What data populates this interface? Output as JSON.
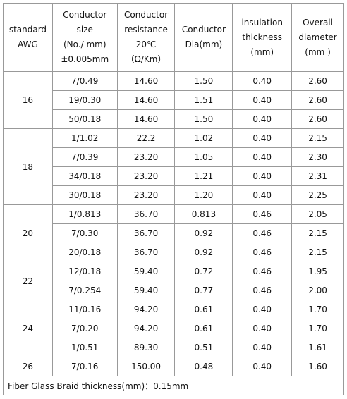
{
  "table": {
    "header": [
      [
        "standard",
        "AWG"
      ],
      [
        "Conductor",
        "size",
        "(No./ mm)",
        "±0.005mm"
      ],
      [
        "Conductor",
        "resistance",
        "20℃",
        "（Ω/Km）"
      ],
      [
        "Conductor",
        "Dia(mm)"
      ],
      [
        "insulation",
        "thickness",
        "(mm)"
      ],
      [
        "Overall",
        "diameter",
        "(mm )"
      ]
    ],
    "groups": [
      {
        "awg": "16",
        "rows": [
          [
            "7/0.49",
            "14.60",
            "1.50",
            "0.40",
            "2.60"
          ],
          [
            "19/0.30",
            "14.60",
            "1.51",
            "0.40",
            "2.60"
          ],
          [
            "50/0.18",
            "14.60",
            "1.50",
            "0.40",
            "2.60"
          ]
        ]
      },
      {
        "awg": "18",
        "rows": [
          [
            "1/1.02",
            "22.2",
            "1.02",
            "0.40",
            "2.15"
          ],
          [
            "7/0.39",
            "23.20",
            "1.05",
            "0.40",
            "2.30"
          ],
          [
            "34/0.18",
            "23.20",
            "1.21",
            "0.40",
            "2.31"
          ],
          [
            "30/0.18",
            "23.20",
            "1.20",
            "0.40",
            "2.25"
          ]
        ]
      },
      {
        "awg": "20",
        "rows": [
          [
            "1/0.813",
            "36.70",
            "0.813",
            "0.46",
            "2.05"
          ],
          [
            "7/0.30",
            "36.70",
            "0.92",
            "0.46",
            "2.15"
          ],
          [
            "20/0.18",
            "36.70",
            "0.92",
            "0.46",
            "2.15"
          ]
        ]
      },
      {
        "awg": "22",
        "rows": [
          [
            "12/0.18",
            "59.40",
            "0.72",
            "0.46",
            "1.95"
          ],
          [
            "7/0.254",
            "59.40",
            "0.77",
            "0.46",
            "2.00"
          ]
        ]
      },
      {
        "awg": "24",
        "rows": [
          [
            "11/0.16",
            "94.20",
            "0.61",
            "0.40",
            "1.70"
          ],
          [
            "7/0.20",
            "94.20",
            "0.61",
            "0.40",
            "1.70"
          ],
          [
            "1/0.51",
            "89.30",
            "0.51",
            "0.40",
            "1.61"
          ]
        ]
      },
      {
        "awg": "26",
        "rows": [
          [
            "7/0.16",
            "150.00",
            "0.48",
            "0.40",
            "1.60"
          ]
        ]
      }
    ],
    "footer": "Fiber Glass Braid thickness(mm)：0.15mm"
  }
}
